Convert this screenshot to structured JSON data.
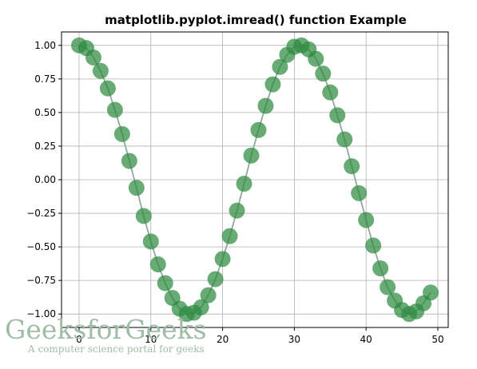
{
  "chart_data": {
    "type": "scatter",
    "title": "matplotlib.pyplot.imread() function Example",
    "xlabel": "",
    "ylabel": "",
    "xlim": [
      -2.45,
      51.45
    ],
    "ylim": [
      -1.1,
      1.1
    ],
    "xticks": [
      0,
      10,
      20,
      30,
      40,
      50
    ],
    "yticks": [
      1.0,
      0.75,
      0.5,
      0.25,
      0.0,
      -0.25,
      -0.5,
      -0.75,
      -1.0
    ],
    "ytick_labels": [
      "1.00",
      "0.75",
      "0.50",
      "0.25",
      "0.00",
      "−0.25",
      "−0.50",
      "−0.75",
      "−1.00"
    ],
    "xtick_labels": [
      "0",
      "10",
      "20",
      "30",
      "40",
      "50"
    ],
    "grid": true,
    "series": [
      {
        "x": [
          0,
          1,
          2,
          3,
          4,
          5,
          6,
          7,
          8,
          9,
          10,
          11,
          12,
          13,
          14,
          15,
          16,
          17,
          18,
          19,
          20,
          21,
          22,
          23,
          24,
          25,
          26,
          27,
          28,
          29,
          30,
          31,
          32,
          33,
          34,
          35,
          36,
          37,
          38,
          39,
          40,
          41,
          42,
          43,
          44,
          45,
          46,
          47,
          48,
          49
        ],
        "y": [
          1.0,
          0.98,
          0.91,
          0.81,
          0.68,
          0.52,
          0.34,
          0.14,
          -0.06,
          -0.27,
          -0.46,
          -0.63,
          -0.77,
          -0.88,
          -0.96,
          -1.0,
          -0.99,
          -0.95,
          -0.86,
          -0.74,
          -0.59,
          -0.42,
          -0.23,
          -0.03,
          0.18,
          0.37,
          0.55,
          0.71,
          0.84,
          0.93,
          0.99,
          1.0,
          0.97,
          0.9,
          0.79,
          0.65,
          0.48,
          0.3,
          0.1,
          -0.1,
          -0.3,
          -0.49,
          -0.66,
          -0.8,
          -0.9,
          -0.97,
          -1.0,
          -0.98,
          -0.92,
          -0.84
        ],
        "color": "#2e8b40",
        "line_color": "#8fa8a0"
      }
    ]
  },
  "watermark": {
    "main": "GeeksforGeeks",
    "sub": "A computer science portal for geeks",
    "color": "#9fbda6"
  }
}
